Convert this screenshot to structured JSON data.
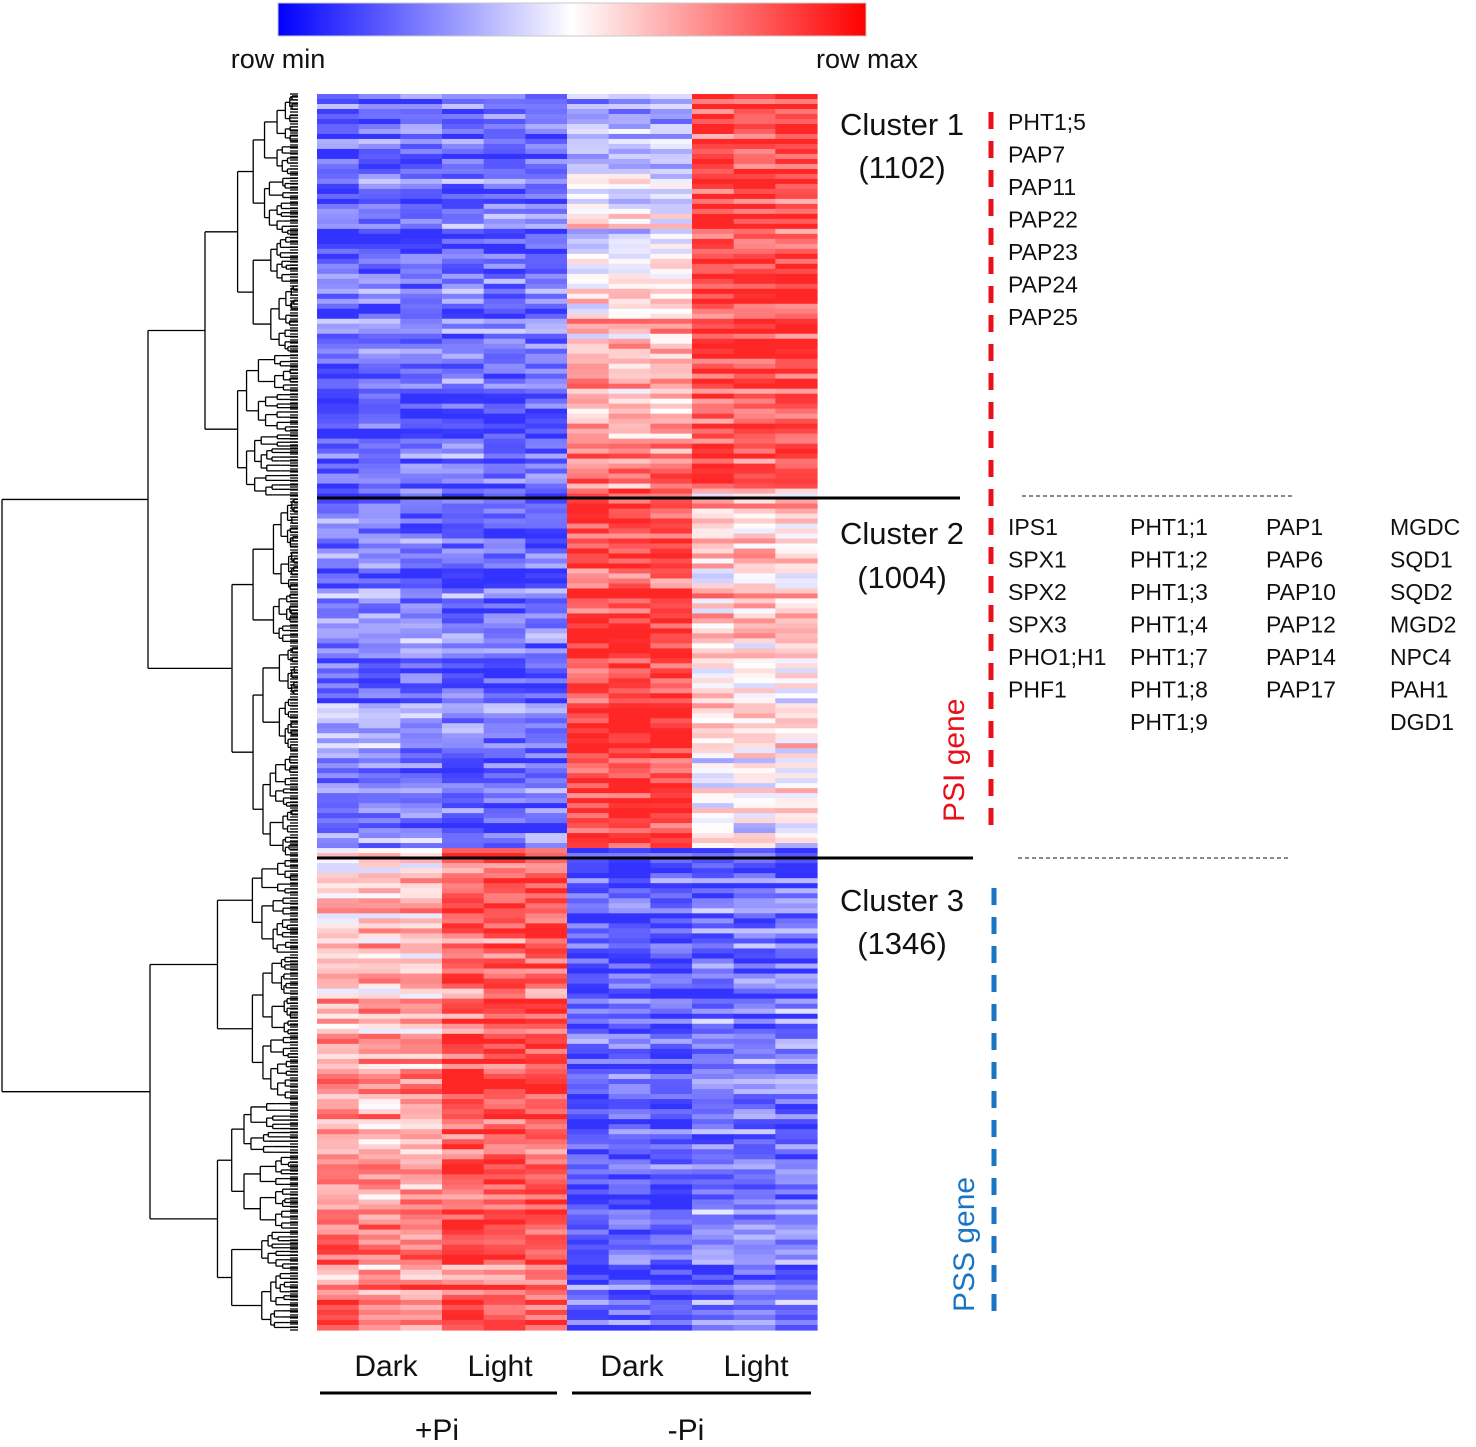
{
  "chart_data": {
    "type": "heatmap",
    "title": "",
    "color_scale": {
      "min_label": "row min",
      "max_label": "row max",
      "colors": [
        "#0000ff",
        "#ffffff",
        "#ff0000"
      ]
    },
    "column_groups": [
      {
        "label": "+Pi",
        "columns": [
          "Dark",
          "Light"
        ]
      },
      {
        "label": "-Pi",
        "columns": [
          "Dark",
          "Light"
        ]
      }
    ],
    "replicates_per_condition": 3,
    "clusters": [
      {
        "name": "Cluster 1",
        "count_label": "(1102)",
        "count": 1102,
        "pattern": [
          -0.75,
          -0.72,
          0.15,
          0.85
        ],
        "genes": [
          "PHT1;5",
          "PAP7",
          "PAP11",
          "PAP22",
          "PAP23",
          "PAP24",
          "PAP25"
        ]
      },
      {
        "name": "Cluster 2",
        "count_label": "(1004)",
        "count": 1004,
        "pattern": [
          -0.6,
          -0.72,
          0.88,
          0.2
        ],
        "gene_columns": [
          [
            "IPS1",
            "SPX1",
            "SPX2",
            "SPX3",
            "PHO1;H1",
            "PHF1"
          ],
          [
            "PHT1;1",
            "PHT1;2",
            "PHT1;3",
            "PHT1;4",
            "PHT1;7",
            "PHT1;8",
            "PHT1;9"
          ],
          [
            "PAP1",
            "PAP6",
            "PAP10",
            "PAP12",
            "PAP14",
            "PAP17"
          ],
          [
            "MGDC",
            "SQD1",
            "SQD2",
            "MGD2",
            "NPC4",
            "PAH1",
            "DGD1"
          ]
        ]
      },
      {
        "name": "Cluster 3",
        "count_label": "(1346)",
        "count": 1346,
        "pattern": [
          0.45,
          0.75,
          -0.8,
          -0.55
        ],
        "genes": []
      }
    ],
    "side_annotations": [
      {
        "label": "PSI gene",
        "color": "#e8101a",
        "clusters": [
          "Cluster 1",
          "Cluster 2"
        ]
      },
      {
        "label": "PSS gene",
        "color": "#1a74c4",
        "clusters": [
          "Cluster 3"
        ]
      }
    ]
  }
}
